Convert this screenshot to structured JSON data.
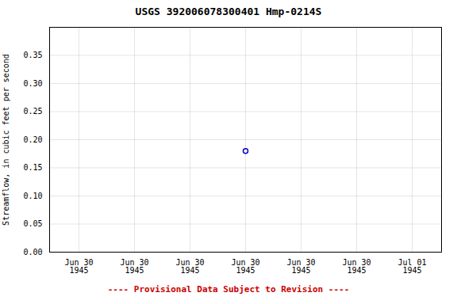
{
  "chart_data": {
    "type": "scatter",
    "title": "USGS 392006078300401  Hmp-0214S",
    "ylabel": "Streamflow, in cubic feet per second",
    "categories": [
      "Jun 30\n1945",
      "Jun 30\n1945",
      "Jun 30\n1945",
      "Jun 30\n1945",
      "Jun 30\n1945",
      "Jun 30\n1945",
      "Jul 01\n1945"
    ],
    "values": [
      null,
      null,
      null,
      0.18,
      null,
      null,
      null
    ],
    "color": "#0000cc",
    "marker": "circle",
    "ylim": [
      0.0,
      0.4
    ],
    "yticks": [
      {
        "value": 0.0,
        "label": "0.00"
      },
      {
        "value": 0.05,
        "label": "0.05"
      },
      {
        "value": 0.1,
        "label": "0.10"
      },
      {
        "value": 0.15,
        "label": "0.15"
      },
      {
        "value": 0.2,
        "label": "0.20"
      },
      {
        "value": 0.25,
        "label": "0.25"
      },
      {
        "value": 0.3,
        "label": "0.30"
      },
      {
        "value": 0.35,
        "label": "0.35"
      }
    ],
    "grid": true,
    "annotations": [
      {
        "text": "---- Provisional Data Subject to Revision ----",
        "color": "#cc0000"
      }
    ]
  }
}
